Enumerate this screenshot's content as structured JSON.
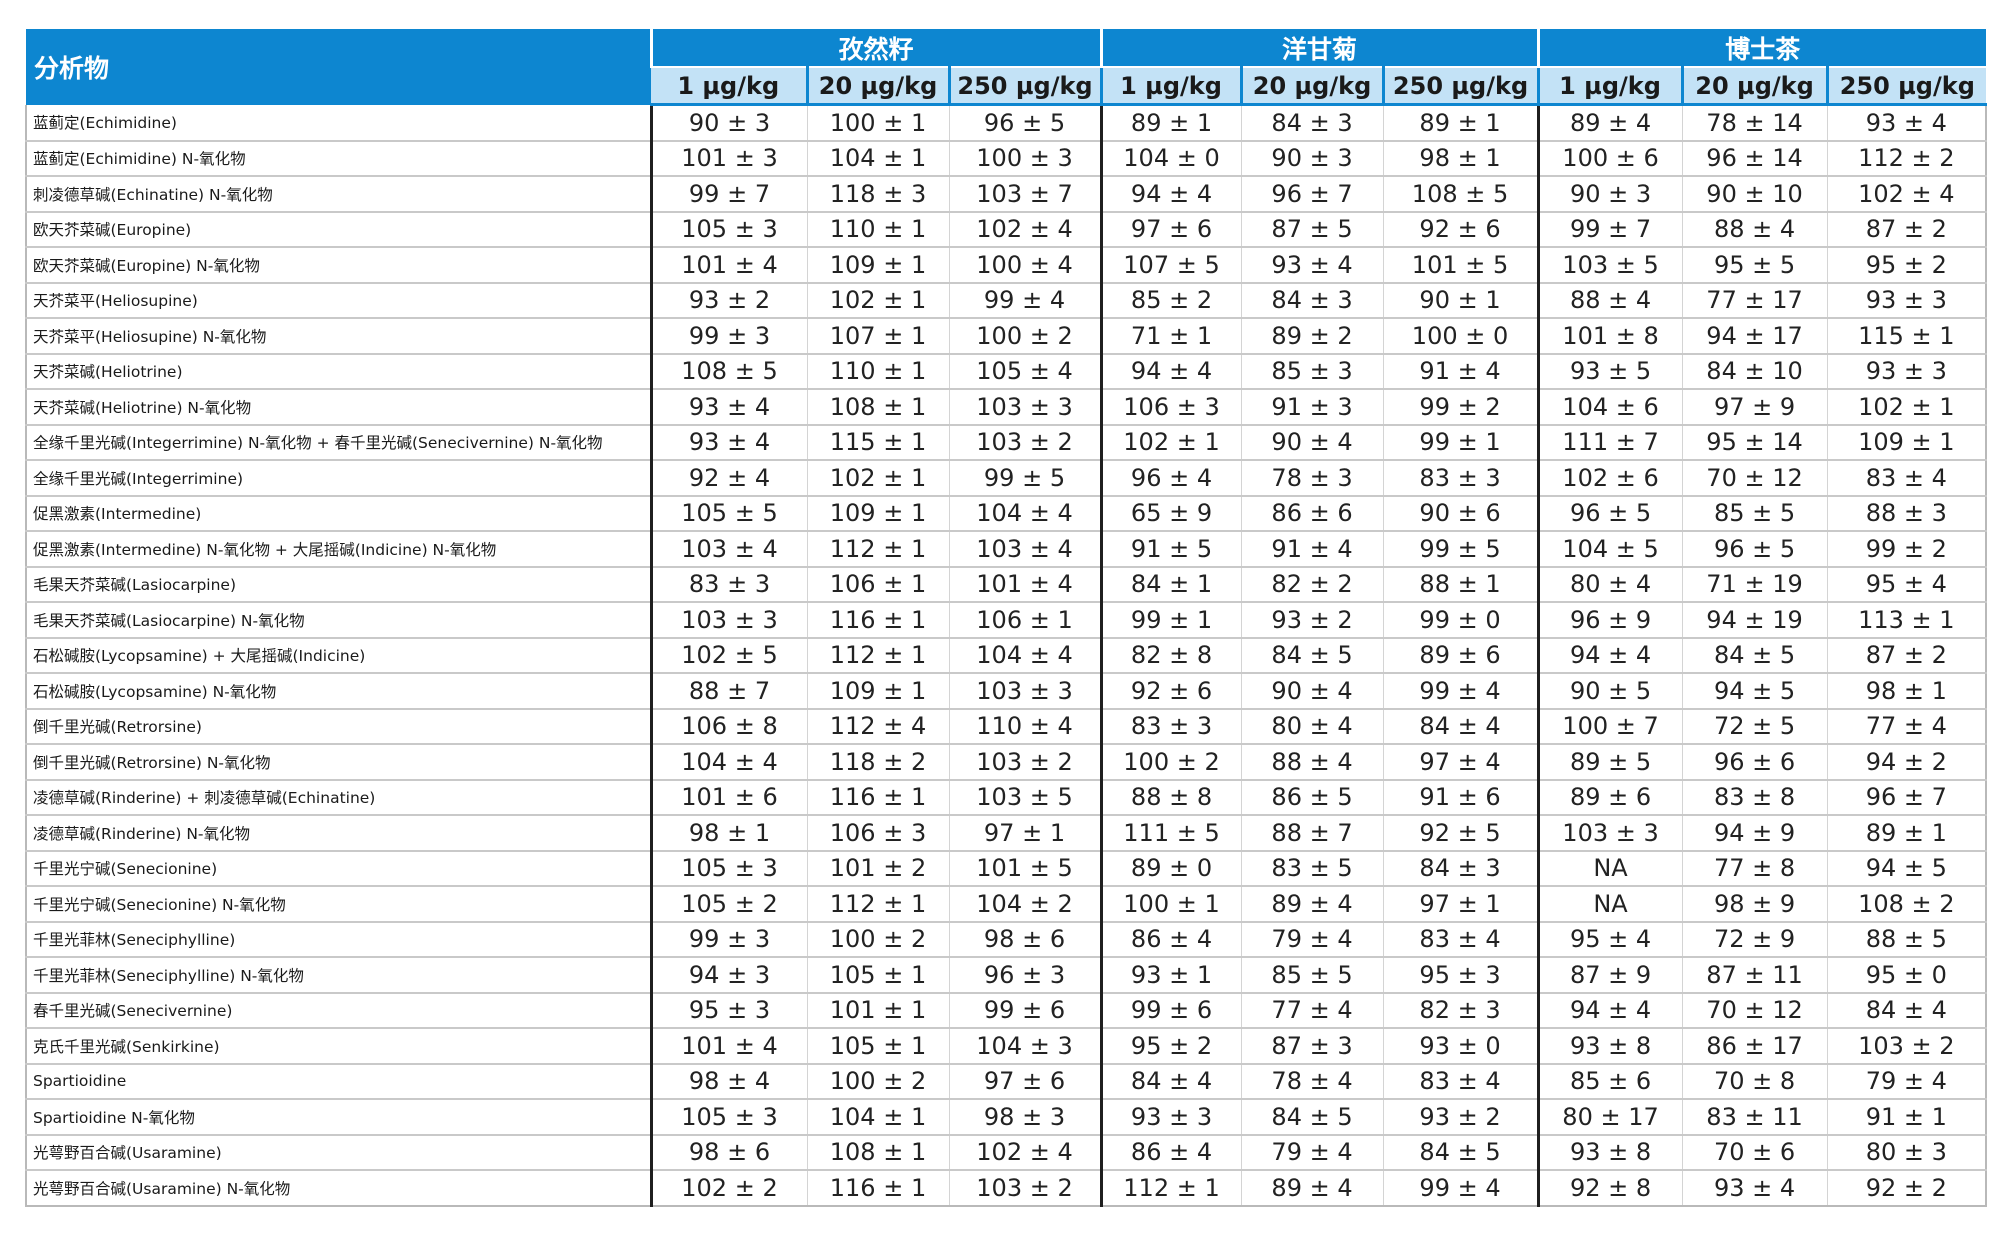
{
  "header": {
    "analyte": "分析物",
    "groups": [
      "孜然籽",
      "洋甘菊",
      "博士茶"
    ],
    "levels": [
      "1 µg/kg",
      "20 µg/kg",
      "250 µg/kg"
    ]
  },
  "rows": [
    {
      "name": "蓝蓟定(Echimidine)",
      "v": [
        "90 ± 3",
        "100 ± 1",
        "96 ± 5",
        "89 ± 1",
        "84 ± 3",
        "89 ± 1",
        "89 ± 4",
        "78 ± 14",
        "93 ± 4"
      ]
    },
    {
      "name": "蓝蓟定(Echimidine) N-氧化物",
      "v": [
        "101 ± 3",
        "104 ± 1",
        "100 ± 3",
        "104 ± 0",
        "90 ± 3",
        "98 ± 1",
        "100 ± 6",
        "96 ± 14",
        "112 ± 2"
      ]
    },
    {
      "name": "刺凌德草碱(Echinatine) N-氧化物",
      "v": [
        "99 ± 7",
        "118 ± 3",
        "103 ± 7",
        "94 ± 4",
        "96 ± 7",
        "108 ± 5",
        "90 ± 3",
        "90 ± 10",
        "102 ± 4"
      ]
    },
    {
      "name": "欧天芥菜碱(Europine)",
      "v": [
        "105 ± 3",
        "110 ± 1",
        "102 ± 4",
        "97 ± 6",
        "87 ± 5",
        "92 ± 6",
        "99 ± 7",
        "88 ± 4",
        "87 ± 2"
      ]
    },
    {
      "name": "欧天芥菜碱(Europine) N-氧化物",
      "v": [
        "101 ± 4",
        "109 ± 1",
        "100 ± 4",
        "107 ± 5",
        "93 ± 4",
        "101 ± 5",
        "103 ± 5",
        "95 ± 5",
        "95 ± 2"
      ]
    },
    {
      "name": "天芥菜平(Heliosupine)",
      "v": [
        "93 ± 2",
        "102 ± 1",
        "99 ± 4",
        "85 ± 2",
        "84 ± 3",
        "90 ± 1",
        "88 ± 4",
        "77 ± 17",
        "93 ± 3"
      ]
    },
    {
      "name": "天芥菜平(Heliosupine) N-氧化物",
      "v": [
        "99 ± 3",
        "107 ± 1",
        "100 ± 2",
        "71 ± 1",
        "89 ± 2",
        "100 ± 0",
        "101 ± 8",
        "94 ± 17",
        "115 ± 1"
      ]
    },
    {
      "name": "天芥菜碱(Heliotrine)",
      "v": [
        "108 ± 5",
        "110 ± 1",
        "105 ± 4",
        "94 ± 4",
        "85 ± 3",
        "91 ± 4",
        "93 ± 5",
        "84 ± 10",
        "93 ± 3"
      ]
    },
    {
      "name": "天芥菜碱(Heliotrine) N-氧化物",
      "v": [
        "93 ± 4",
        "108 ± 1",
        "103 ± 3",
        "106 ± 3",
        "91 ± 3",
        "99 ± 2",
        "104 ± 6",
        "97 ± 9",
        "102 ± 1"
      ]
    },
    {
      "name": "全缘千里光碱(Integerrimine) N-氧化物 + 春千里光碱(Senecivernine) N-氧化物",
      "v": [
        "93 ± 4",
        "115 ± 1",
        "103 ± 2",
        "102 ± 1",
        "90 ± 4",
        "99 ± 1",
        "111 ± 7",
        "95 ± 14",
        "109 ± 1"
      ]
    },
    {
      "name": "全缘千里光碱(Integerrimine)",
      "v": [
        "92 ± 4",
        "102 ± 1",
        "99 ± 5",
        "96 ± 4",
        "78 ± 3",
        "83 ± 3",
        "102 ± 6",
        "70 ± 12",
        "83 ± 4"
      ]
    },
    {
      "name": "促黑激素(Intermedine)",
      "v": [
        "105 ± 5",
        "109 ± 1",
        "104 ± 4",
        "65 ± 9",
        "86 ± 6",
        "90 ± 6",
        "96 ± 5",
        "85 ± 5",
        "88 ± 3"
      ]
    },
    {
      "name": "促黑激素(Intermedine) N-氧化物 + 大尾摇碱(Indicine) N-氧化物",
      "v": [
        "103 ± 4",
        "112 ± 1",
        "103 ± 4",
        "91 ± 5",
        "91 ± 4",
        "99 ± 5",
        "104 ± 5",
        "96 ± 5",
        "99 ± 2"
      ]
    },
    {
      "name": "毛果天芥菜碱(Lasiocarpine)",
      "v": [
        "83 ± 3",
        "106 ± 1",
        "101 ± 4",
        "84 ± 1",
        "82 ± 2",
        "88 ± 1",
        "80 ± 4",
        "71 ± 19",
        "95 ± 4"
      ]
    },
    {
      "name": "毛果天芥菜碱(Lasiocarpine) N-氧化物",
      "v": [
        "103 ± 3",
        "116 ± 1",
        "106 ± 1",
        "99 ± 1",
        "93 ± 2",
        "99 ± 0",
        "96 ± 9",
        "94 ± 19",
        "113 ± 1"
      ]
    },
    {
      "name": "石松碱胺(Lycopsamine) + 大尾摇碱(Indicine)",
      "v": [
        "102 ± 5",
        "112 ± 1",
        "104 ± 4",
        "82 ± 8",
        "84 ± 5",
        "89 ± 6",
        "94 ± 4",
        "84 ± 5",
        "87 ± 2"
      ]
    },
    {
      "name": "石松碱胺(Lycopsamine) N-氧化物",
      "v": [
        "88 ± 7",
        "109 ± 1",
        "103 ± 3",
        "92 ± 6",
        "90 ± 4",
        "99 ± 4",
        "90 ± 5",
        "94 ± 5",
        "98 ± 1"
      ]
    },
    {
      "name": "倒千里光碱(Retrorsine)",
      "v": [
        "106 ± 8",
        "112 ± 4",
        "110 ± 4",
        "83 ± 3",
        "80 ± 4",
        "84 ± 4",
        "100 ± 7",
        "72 ± 5",
        "77 ± 4"
      ]
    },
    {
      "name": "倒千里光碱(Retrorsine) N-氧化物",
      "v": [
        "104 ± 4",
        "118 ± 2",
        "103 ± 2",
        "100 ± 2",
        "88 ± 4",
        "97 ± 4",
        "89 ± 5",
        "96 ± 6",
        "94 ± 2"
      ]
    },
    {
      "name": "凌德草碱(Rinderine) + 刺凌德草碱(Echinatine)",
      "v": [
        "101 ± 6",
        "116 ± 1",
        "103 ± 5",
        "88 ± 8",
        "86 ± 5",
        "91 ± 6",
        "89 ± 6",
        "83 ± 8",
        "96 ± 7"
      ]
    },
    {
      "name": "凌德草碱(Rinderine) N-氧化物",
      "v": [
        "98 ± 1",
        "106 ± 3",
        "97 ± 1",
        "111 ± 5",
        "88 ± 7",
        "92 ± 5",
        "103 ± 3",
        "94 ± 9",
        "89 ± 1"
      ]
    },
    {
      "name": "千里光宁碱(Senecionine)",
      "v": [
        "105 ± 3",
        "101 ± 2",
        "101 ± 5",
        "89 ± 0",
        "83 ± 5",
        "84 ± 3",
        "NA",
        "77 ± 8",
        "94 ± 5"
      ]
    },
    {
      "name": "千里光宁碱(Senecionine) N-氧化物",
      "v": [
        "105 ± 2",
        "112 ± 1",
        "104 ± 2",
        "100 ± 1",
        "89 ± 4",
        "97 ± 1",
        "NA",
        "98 ± 9",
        "108 ± 2"
      ]
    },
    {
      "name": "千里光菲林(Seneciphylline)",
      "v": [
        "99 ± 3",
        "100 ± 2",
        "98 ± 6",
        "86 ± 4",
        "79 ± 4",
        "83 ± 4",
        "95 ± 4",
        "72 ± 9",
        "88 ± 5"
      ]
    },
    {
      "name": "千里光菲林(Seneciphylline) N-氧化物",
      "v": [
        "94 ± 3",
        "105 ± 1",
        "96 ± 3",
        "93 ± 1",
        "85 ± 5",
        "95 ± 3",
        "87 ± 9",
        "87 ± 11",
        "95 ± 0"
      ]
    },
    {
      "name": "春千里光碱(Senecivernine)",
      "v": [
        "95 ± 3",
        "101 ± 1",
        "99 ± 6",
        "99 ± 6",
        "77 ± 4",
        "82 ± 3",
        "94 ± 4",
        "70 ± 12",
        "84 ± 4"
      ]
    },
    {
      "name": "克氏千里光碱(Senkirkine)",
      "v": [
        "101 ± 4",
        "105 ± 1",
        "104 ± 3",
        "95 ± 2",
        "87 ± 3",
        "93 ± 0",
        "93 ± 8",
        "86 ± 17",
        "103 ± 2"
      ]
    },
    {
      "name": "Spartioidine",
      "v": [
        "98 ± 4",
        "100 ± 2",
        "97 ± 6",
        "84 ± 4",
        "78 ± 4",
        "83 ± 4",
        "85 ± 6",
        "70 ± 8",
        "79 ± 4"
      ]
    },
    {
      "name": "Spartioidine N-氧化物",
      "v": [
        "105 ± 3",
        "104 ± 1",
        "98 ± 3",
        "93 ± 3",
        "84 ± 5",
        "93 ± 2",
        "80 ± 17",
        "83 ± 11",
        "91 ± 1"
      ]
    },
    {
      "name": "光萼野百合碱(Usaramine)",
      "v": [
        "98 ± 6",
        "108 ± 1",
        "102 ± 4",
        "86 ± 4",
        "79 ± 4",
        "84 ± 5",
        "93 ± 8",
        "70 ± 6",
        "80 ± 3"
      ]
    },
    {
      "name": "光萼野百合碱(Usaramine) N-氧化物",
      "v": [
        "102 ± 2",
        "116 ± 1",
        "103 ± 2",
        "112 ± 1",
        "89 ± 4",
        "99 ± 4",
        "92 ± 8",
        "93 ± 4",
        "92 ± 2"
      ]
    }
  ]
}
